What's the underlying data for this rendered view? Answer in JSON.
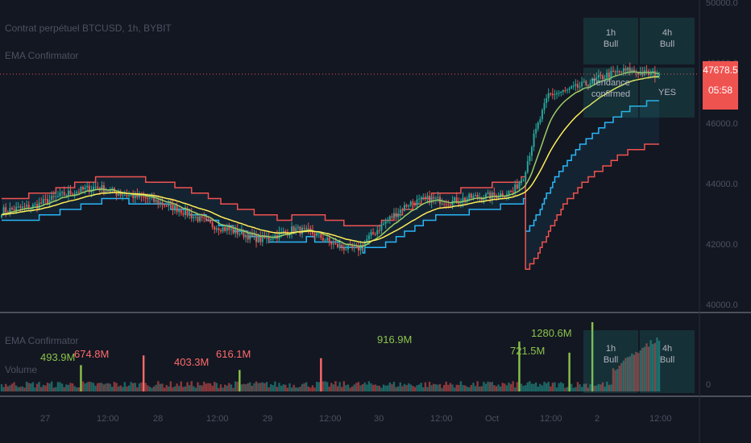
{
  "header": {
    "symbol_title": "Contrat perpétuel BTCUSD, 1h, BYBIT",
    "indicator_name": "EMA Confirmator"
  },
  "volume_pane": {
    "indicator_name": "EMA Confirmator",
    "volume_label": "Volume"
  },
  "price_box": {
    "price": "47678.5",
    "countdown": "05:58",
    "color": "#ef5350"
  },
  "price_axis_ticks": [
    "50000.0",
    "48000.0",
    "46000.0",
    "44000.0",
    "42000.0",
    "40000.0"
  ],
  "volume_axis_ticks": [
    "0"
  ],
  "time_axis_ticks": [
    "27",
    "12:00",
    "28",
    "12:00",
    "29",
    "12:00",
    "30",
    "12:00",
    "Oct",
    "12:00",
    "2",
    "12:00"
  ],
  "confirm_table": {
    "tf1": {
      "label": "1h",
      "state": "Bull"
    },
    "tf2": {
      "label": "4h",
      "state": "Bull"
    },
    "text": "Tendance confirmed",
    "value": "YES"
  },
  "volume_table": {
    "tf1": {
      "label": "1h",
      "state": "Bull"
    },
    "tf2": {
      "label": "4h",
      "state": "Bull"
    }
  },
  "colors": {
    "background": "#131722",
    "bull": "#26a69a",
    "bear": "#ef5350",
    "ema_fast": "#9ccc65",
    "ema_slow": "#ffee58",
    "band_upper": "#29b6f6",
    "band_lower": "#ef5350",
    "label_green": "#8bc34a",
    "label_red": "#ff6b6b"
  },
  "chart_data": {
    "type": "candlestick",
    "title": "Contrat perpétuel BTCUSD, 1h, BYBIT",
    "ylim": [
      40000,
      50000
    ],
    "grid": false,
    "price_anchors": [
      [
        0,
        43150
      ],
      [
        15,
        43300
      ],
      [
        30,
        43700
      ],
      [
        45,
        43950
      ],
      [
        55,
        43750
      ],
      [
        70,
        43550
      ],
      [
        85,
        43200
      ],
      [
        100,
        42700
      ],
      [
        115,
        42400
      ],
      [
        124,
        42200
      ],
      [
        132,
        42350
      ],
      [
        140,
        42550
      ],
      [
        150,
        42400
      ],
      [
        160,
        42000
      ],
      [
        170,
        41850
      ],
      [
        175,
        42200
      ],
      [
        185,
        42850
      ],
      [
        195,
        43400
      ],
      [
        205,
        43550
      ],
      [
        215,
        43450
      ],
      [
        225,
        43600
      ],
      [
        235,
        43650
      ],
      [
        245,
        43800
      ],
      [
        250,
        44300
      ],
      [
        255,
        45600
      ],
      [
        262,
        47000
      ],
      [
        270,
        47100
      ],
      [
        280,
        47350
      ],
      [
        290,
        47650
      ],
      [
        300,
        47800
      ],
      [
        308,
        47700
      ],
      [
        315,
        47678
      ]
    ],
    "volume_annotations": [
      {
        "label": "493.9M",
        "color": "green"
      },
      {
        "label": "674.8M",
        "color": "red"
      },
      {
        "label": "403.3M",
        "color": "red"
      },
      {
        "label": "616.1M",
        "color": "red"
      },
      {
        "label": "916.9M",
        "color": "green"
      },
      {
        "label": "721.5M",
        "color": "green"
      },
      {
        "label": "1280.6M",
        "color": "green"
      }
    ]
  }
}
